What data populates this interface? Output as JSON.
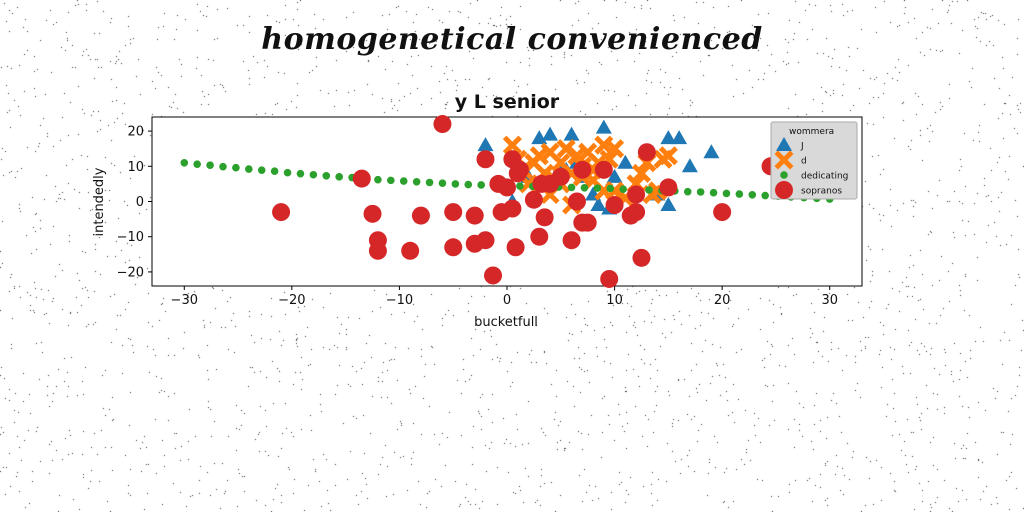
{
  "figure": {
    "suptitle": "homogenetical convenienced"
  },
  "chart_data": {
    "type": "scatter",
    "title": "y L senior",
    "xlabel": "bucketfull",
    "ylabel": "intendedly",
    "xlim": [
      -33,
      33
    ],
    "ylim": [
      -24,
      24
    ],
    "xticks": [
      -30,
      -20,
      -10,
      0,
      10,
      20,
      30
    ],
    "yticks": [
      -20,
      -10,
      0,
      10,
      20
    ],
    "grid": false,
    "legend": {
      "title": "wommera",
      "placement": "top-right"
    },
    "series": [
      {
        "name": "J",
        "marker": "triangle",
        "color": "#1f77b4",
        "points": [
          [
            -2,
            16
          ],
          [
            0.5,
            0
          ],
          [
            2,
            7
          ],
          [
            3,
            18
          ],
          [
            3.5,
            7
          ],
          [
            4,
            19
          ],
          [
            4.5,
            7
          ],
          [
            5,
            10
          ],
          [
            5.5,
            9
          ],
          [
            6,
            19
          ],
          [
            6.5,
            11
          ],
          [
            7,
            7
          ],
          [
            8,
            2
          ],
          [
            8.5,
            -1
          ],
          [
            9,
            21
          ],
          [
            9.5,
            -2
          ],
          [
            10,
            7
          ],
          [
            11,
            11
          ],
          [
            12,
            2
          ],
          [
            14,
            2
          ],
          [
            15,
            18
          ],
          [
            15,
            -1
          ],
          [
            16,
            18
          ],
          [
            17,
            10
          ],
          [
            19,
            14
          ]
        ]
      },
      {
        "name": "d",
        "marker": "x",
        "color": "#ff7f0e",
        "points": [
          [
            0.5,
            16
          ],
          [
            1,
            12
          ],
          [
            1.5,
            9
          ],
          [
            2,
            5
          ],
          [
            2.5,
            11
          ],
          [
            3,
            13
          ],
          [
            3.5,
            8
          ],
          [
            4,
            14
          ],
          [
            4.5,
            6
          ],
          [
            5,
            11
          ],
          [
            5.5,
            15
          ],
          [
            6,
            8
          ],
          [
            6.5,
            13
          ],
          [
            7,
            10
          ],
          [
            7.5,
            14
          ],
          [
            8,
            6
          ],
          [
            8.5,
            11
          ],
          [
            9,
            16
          ],
          [
            9.5,
            12
          ],
          [
            10,
            3
          ],
          [
            11,
            1
          ],
          [
            12,
            5
          ],
          [
            12.5,
            8
          ],
          [
            13,
            11
          ],
          [
            13.5,
            2
          ],
          [
            14,
            3
          ],
          [
            14.5,
            12
          ],
          [
            15,
            13
          ],
          [
            6,
            -1
          ],
          [
            4,
            2
          ],
          [
            9,
            3
          ],
          [
            8,
            9
          ],
          [
            5,
            5
          ],
          [
            10,
            15
          ],
          [
            7,
            7
          ]
        ]
      },
      {
        "name": "dedicating",
        "marker": "dot",
        "color": "#2ca02c",
        "points": [
          [
            -30,
            11
          ],
          [
            -28.8,
            10.6
          ],
          [
            -27.6,
            10.3
          ],
          [
            -26.4,
            9.9
          ],
          [
            -25.2,
            9.6
          ],
          [
            -24,
            9.2
          ],
          [
            -22.8,
            8.9
          ],
          [
            -21.6,
            8.6
          ],
          [
            -20.4,
            8.2
          ],
          [
            -19.2,
            7.9
          ],
          [
            -18,
            7.6
          ],
          [
            -16.8,
            7.3
          ],
          [
            -15.6,
            7
          ],
          [
            -14.4,
            6.8
          ],
          [
            -13.2,
            6.5
          ],
          [
            -12,
            6.2
          ],
          [
            -10.8,
            6
          ],
          [
            -9.6,
            5.8
          ],
          [
            -8.4,
            5.6
          ],
          [
            -7.2,
            5.4
          ],
          [
            -6,
            5.2
          ],
          [
            -4.8,
            5
          ],
          [
            -3.6,
            4.8
          ],
          [
            -2.4,
            4.7
          ],
          [
            -1.2,
            4.6
          ],
          [
            0,
            4.5
          ],
          [
            1.2,
            4.4
          ],
          [
            2.4,
            4.3
          ],
          [
            3.6,
            4.2
          ],
          [
            4.8,
            4.1
          ],
          [
            6,
            4
          ],
          [
            7.2,
            3.9
          ],
          [
            8.4,
            3.8
          ],
          [
            9.6,
            3.7
          ],
          [
            10.8,
            3.5
          ],
          [
            12,
            3.4
          ],
          [
            13.2,
            3.3
          ],
          [
            14.4,
            3.1
          ],
          [
            15.6,
            3
          ],
          [
            16.8,
            2.8
          ],
          [
            18,
            2.7
          ],
          [
            19.2,
            2.5
          ],
          [
            20.4,
            2.3
          ],
          [
            21.6,
            2.1
          ],
          [
            22.8,
            1.9
          ],
          [
            24,
            1.7
          ],
          [
            25.2,
            1.5
          ],
          [
            26.4,
            1.3
          ],
          [
            27.6,
            1.1
          ],
          [
            28.8,
            0.9
          ],
          [
            30,
            0.7
          ]
        ]
      },
      {
        "name": "sopranos",
        "marker": "circle",
        "color": "#d62728",
        "points": [
          [
            -21,
            -3
          ],
          [
            -13.5,
            6.5
          ],
          [
            -12.5,
            -3.5
          ],
          [
            -12,
            -11
          ],
          [
            -12,
            -14
          ],
          [
            -9,
            -14
          ],
          [
            -8,
            -4
          ],
          [
            -6,
            22
          ],
          [
            -5,
            -3
          ],
          [
            -5,
            -13
          ],
          [
            -3,
            -4
          ],
          [
            -3,
            -12
          ],
          [
            -2,
            12
          ],
          [
            -2,
            -11
          ],
          [
            -1.3,
            -21
          ],
          [
            -0.8,
            5
          ],
          [
            -0.5,
            -3
          ],
          [
            0,
            4
          ],
          [
            0.5,
            -2
          ],
          [
            0.5,
            12
          ],
          [
            0.8,
            -13
          ],
          [
            1,
            8
          ],
          [
            1.2,
            9
          ],
          [
            2.5,
            0.5
          ],
          [
            3,
            -10
          ],
          [
            3.2,
            5
          ],
          [
            3.5,
            -4.5
          ],
          [
            4,
            5
          ],
          [
            5,
            7
          ],
          [
            6,
            -11
          ],
          [
            6.5,
            0
          ],
          [
            7,
            -6
          ],
          [
            7.5,
            -6
          ],
          [
            7,
            9
          ],
          [
            9,
            9
          ],
          [
            9.5,
            -22
          ],
          [
            10,
            -1
          ],
          [
            11.5,
            -4
          ],
          [
            12,
            -3
          ],
          [
            12,
            2
          ],
          [
            12.5,
            -16
          ],
          [
            13,
            14
          ],
          [
            15,
            4
          ],
          [
            20,
            -3
          ],
          [
            24.5,
            10
          ]
        ]
      }
    ]
  }
}
